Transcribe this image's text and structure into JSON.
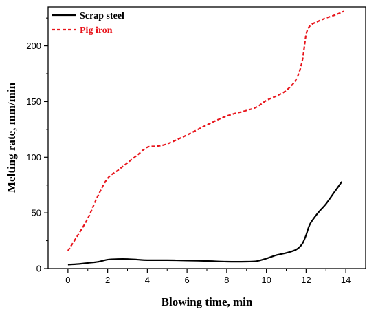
{
  "chart_data": {
    "type": "line",
    "xlabel": "Blowing time, min",
    "ylabel": "Melting rate, mm/min",
    "xlim": [
      -1,
      15
    ],
    "ylim": [
      0,
      235
    ],
    "x_ticks": [
      "0",
      "2",
      "4",
      "6",
      "8",
      "10",
      "12",
      "14"
    ],
    "y_ticks": [
      "0",
      "50",
      "100",
      "150",
      "200"
    ],
    "legend_position": "top-left",
    "grid": false,
    "series": [
      {
        "name": "Scrap steel",
        "color": "#000000",
        "style": "solid",
        "x": [
          0,
          0.5,
          1,
          1.5,
          2,
          2.5,
          3,
          3.5,
          4,
          5,
          6,
          7,
          8,
          9,
          9.5,
          10,
          10.5,
          11,
          11.5,
          11.8,
          12,
          12.2,
          12.6,
          13,
          13.4,
          13.8
        ],
        "y": [
          3.5,
          4,
          5,
          6,
          8,
          8.5,
          8.5,
          8,
          7.5,
          7.5,
          7.2,
          6.8,
          6.2,
          6.2,
          6.6,
          9,
          12,
          14,
          17,
          22,
          30,
          40,
          50,
          58,
          68,
          78
        ]
      },
      {
        "name": "Pig iron",
        "color": "#e8141b",
        "style": "dashed",
        "x": [
          0,
          0.5,
          1,
          1.5,
          2,
          2.5,
          3,
          3.5,
          4,
          4.5,
          5,
          6,
          7,
          8,
          9,
          9.5,
          10,
          10.5,
          11,
          11.5,
          11.8,
          12,
          12.2,
          12.6,
          13,
          13.5,
          13.9
        ],
        "y": [
          16,
          30,
          45,
          65,
          81,
          88,
          95,
          102,
          109,
          110,
          112,
          120,
          129,
          137,
          142,
          145,
          151,
          155,
          160,
          170,
          186,
          210,
          218,
          222,
          225,
          228,
          231
        ]
      }
    ]
  }
}
